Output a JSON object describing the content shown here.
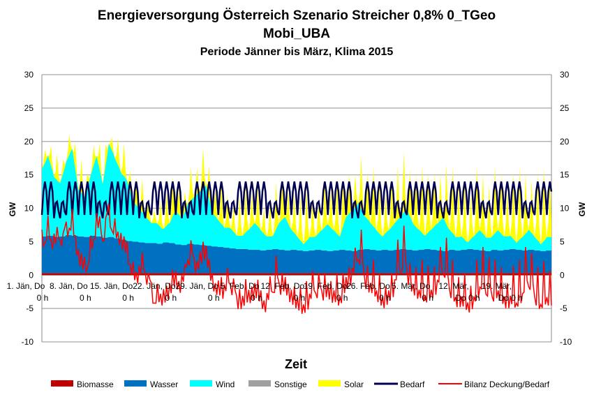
{
  "chart_data": {
    "type": "area",
    "title": "Energieversorgung Österreich Szenario Streicher 0,8% 0_TGeo",
    "title2": "Mobi_UBA",
    "subtitle": "Periode Jänner bis März, Klima 2015",
    "xlabel": "Zeit",
    "ylabel": "GW",
    "ylabel_right": "GW",
    "ylim": [
      -10,
      30
    ],
    "yticks": [
      -10,
      -5,
      0,
      5,
      10,
      15,
      20,
      25,
      30
    ],
    "grid": true,
    "legend_position": "bottom",
    "x_tick_labels": [
      [
        "1. Jän, Do",
        "0 h"
      ],
      [
        "8. Jän, Do",
        "0 h"
      ],
      [
        "15. Jän, Do",
        "0 h"
      ],
      [
        "22. Jän, Do",
        "0 h"
      ],
      [
        "29. Jän, Do",
        "0 h"
      ],
      [
        "5. Feb, Do",
        "0 h"
      ],
      [
        "12. Feb, Do",
        "0 h"
      ],
      [
        "19. Feb, Do",
        "0 h"
      ],
      [
        "26. Feb, Do",
        "0 h"
      ],
      [
        "5. Mär, Do",
        "0 h"
      ],
      [
        "12. Mär,",
        "Do 0 h"
      ],
      [
        "19. Mär,",
        "Do 0 h"
      ]
    ],
    "days": 84,
    "series": [
      {
        "name": "Biomasse",
        "color": "#c00000",
        "kind": "stack",
        "daily": [
          0.3
        ]
      },
      {
        "name": "Wasser",
        "color": "#0070c0",
        "kind": "stack",
        "daily": [
          5.5,
          5.6,
          5.4,
          5.5,
          5.7,
          5.6,
          5.5,
          5.4,
          5.6,
          5.5,
          5.3,
          5.4,
          5.2,
          5.0,
          4.8,
          4.7,
          4.6,
          4.5,
          4.5,
          4.4,
          4.6,
          4.5,
          4.3,
          4.2,
          4.4,
          4.3,
          4.2,
          4.1,
          4.0,
          3.9,
          3.8,
          3.7,
          3.6,
          3.6,
          3.5,
          3.5,
          3.4,
          3.5,
          3.6,
          3.5,
          3.4,
          3.5,
          3.4,
          3.3,
          3.4,
          3.5,
          3.4,
          3.3,
          3.4,
          3.5,
          3.4,
          3.3,
          3.5,
          3.6,
          3.5,
          3.4,
          3.5,
          3.4,
          3.5,
          3.6,
          3.5,
          3.4,
          3.5,
          3.6,
          3.5,
          3.4,
          3.3,
          3.5,
          3.4,
          3.5,
          3.6,
          3.5,
          3.4,
          3.3,
          3.5,
          3.4,
          3.5,
          3.6,
          3.5,
          3.4,
          3.5,
          3.4,
          3.3,
          3.4
        ]
      },
      {
        "name": "Wind",
        "color": "#00ffff",
        "kind": "stack",
        "daily": [
          10,
          12,
          9,
          8,
          11,
          13,
          7,
          6,
          9,
          12,
          8,
          14,
          12,
          10,
          9,
          6,
          5,
          4,
          3,
          3,
          2,
          3,
          5,
          4,
          6,
          7,
          8,
          9,
          5,
          4,
          3,
          3,
          2,
          2,
          3,
          4,
          3,
          2,
          2,
          4,
          5,
          3,
          2,
          1,
          2,
          2,
          3,
          4,
          3,
          2,
          5,
          6,
          7,
          5,
          4,
          3,
          2,
          3,
          4,
          5,
          6,
          4,
          3,
          2,
          3,
          4,
          5,
          3,
          2,
          2,
          1,
          2,
          3,
          2,
          2,
          3,
          2,
          2,
          1,
          2,
          3,
          2,
          1,
          2
        ]
      },
      {
        "name": "Sonstige",
        "color": "#a0a0a0",
        "kind": "stack",
        "daily": [
          0
        ]
      },
      {
        "name": "Solar",
        "color": "#ffff00",
        "kind": "stack_peak",
        "daily": [
          2,
          3,
          4,
          2,
          3,
          4,
          5,
          2,
          3,
          4,
          3,
          2,
          4,
          5,
          3,
          4,
          5,
          3,
          2,
          4,
          5,
          6,
          4,
          3,
          5,
          4,
          6,
          5,
          4,
          6,
          5,
          4,
          6,
          7,
          5,
          6,
          4,
          5,
          7,
          6,
          5,
          6,
          7,
          8,
          6,
          5,
          7,
          6,
          8,
          7,
          6,
          5,
          8,
          7,
          9,
          8,
          6,
          7,
          8,
          9,
          7,
          8,
          10,
          9,
          8,
          7,
          9,
          10,
          8,
          9,
          7,
          10,
          9,
          8,
          10,
          9,
          7,
          10,
          11,
          9,
          8,
          10,
          11,
          9
        ]
      },
      {
        "name": "Bedarf",
        "color": "#000050",
        "kind": "line",
        "night": 9,
        "day": 14,
        "weekend_night": 8.5,
        "weekend_day": 11
      },
      {
        "name": "Bilanz Deckung/Bedarf",
        "color": "#ff0000",
        "kind": "line_balance"
      }
    ]
  }
}
